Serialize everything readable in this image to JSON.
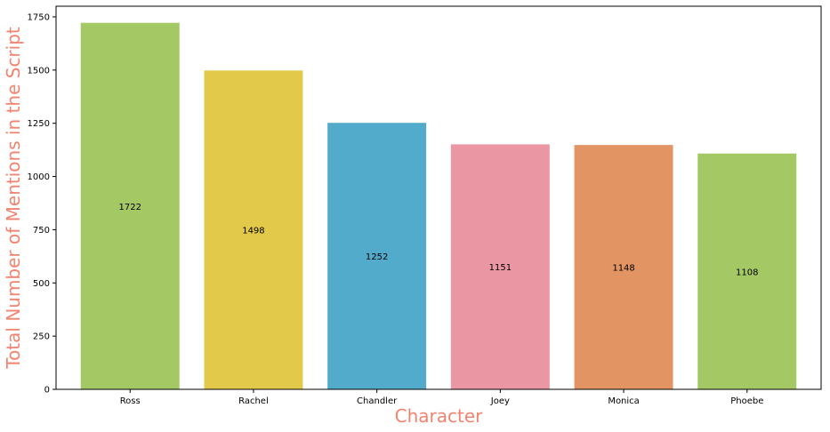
{
  "chart_data": {
    "type": "bar",
    "title": "",
    "xlabel": "Character",
    "ylabel": "Total Number of Mentions in the Script",
    "categories": [
      "Ross",
      "Rachel",
      "Chandler",
      "Joey",
      "Monica",
      "Phoebe"
    ],
    "values": [
      1722,
      1498,
      1252,
      1151,
      1148,
      1108
    ],
    "data_labels": [
      "1722",
      "1498",
      "1252",
      "1151",
      "1148",
      "1108"
    ],
    "bar_colors": [
      "#a3c864",
      "#e3c94a",
      "#52abca",
      "#eb96a3",
      "#e29463",
      "#a3c864"
    ],
    "axis_title_color": "#f3836f",
    "ylim": [
      0,
      1800
    ],
    "yticks": [
      0,
      250,
      500,
      750,
      1000,
      1250,
      1500,
      1750
    ],
    "ytick_labels": [
      "0",
      "250",
      "500",
      "750",
      "1000",
      "1250",
      "1500",
      "1750"
    ],
    "grid": false,
    "legend": "none"
  }
}
